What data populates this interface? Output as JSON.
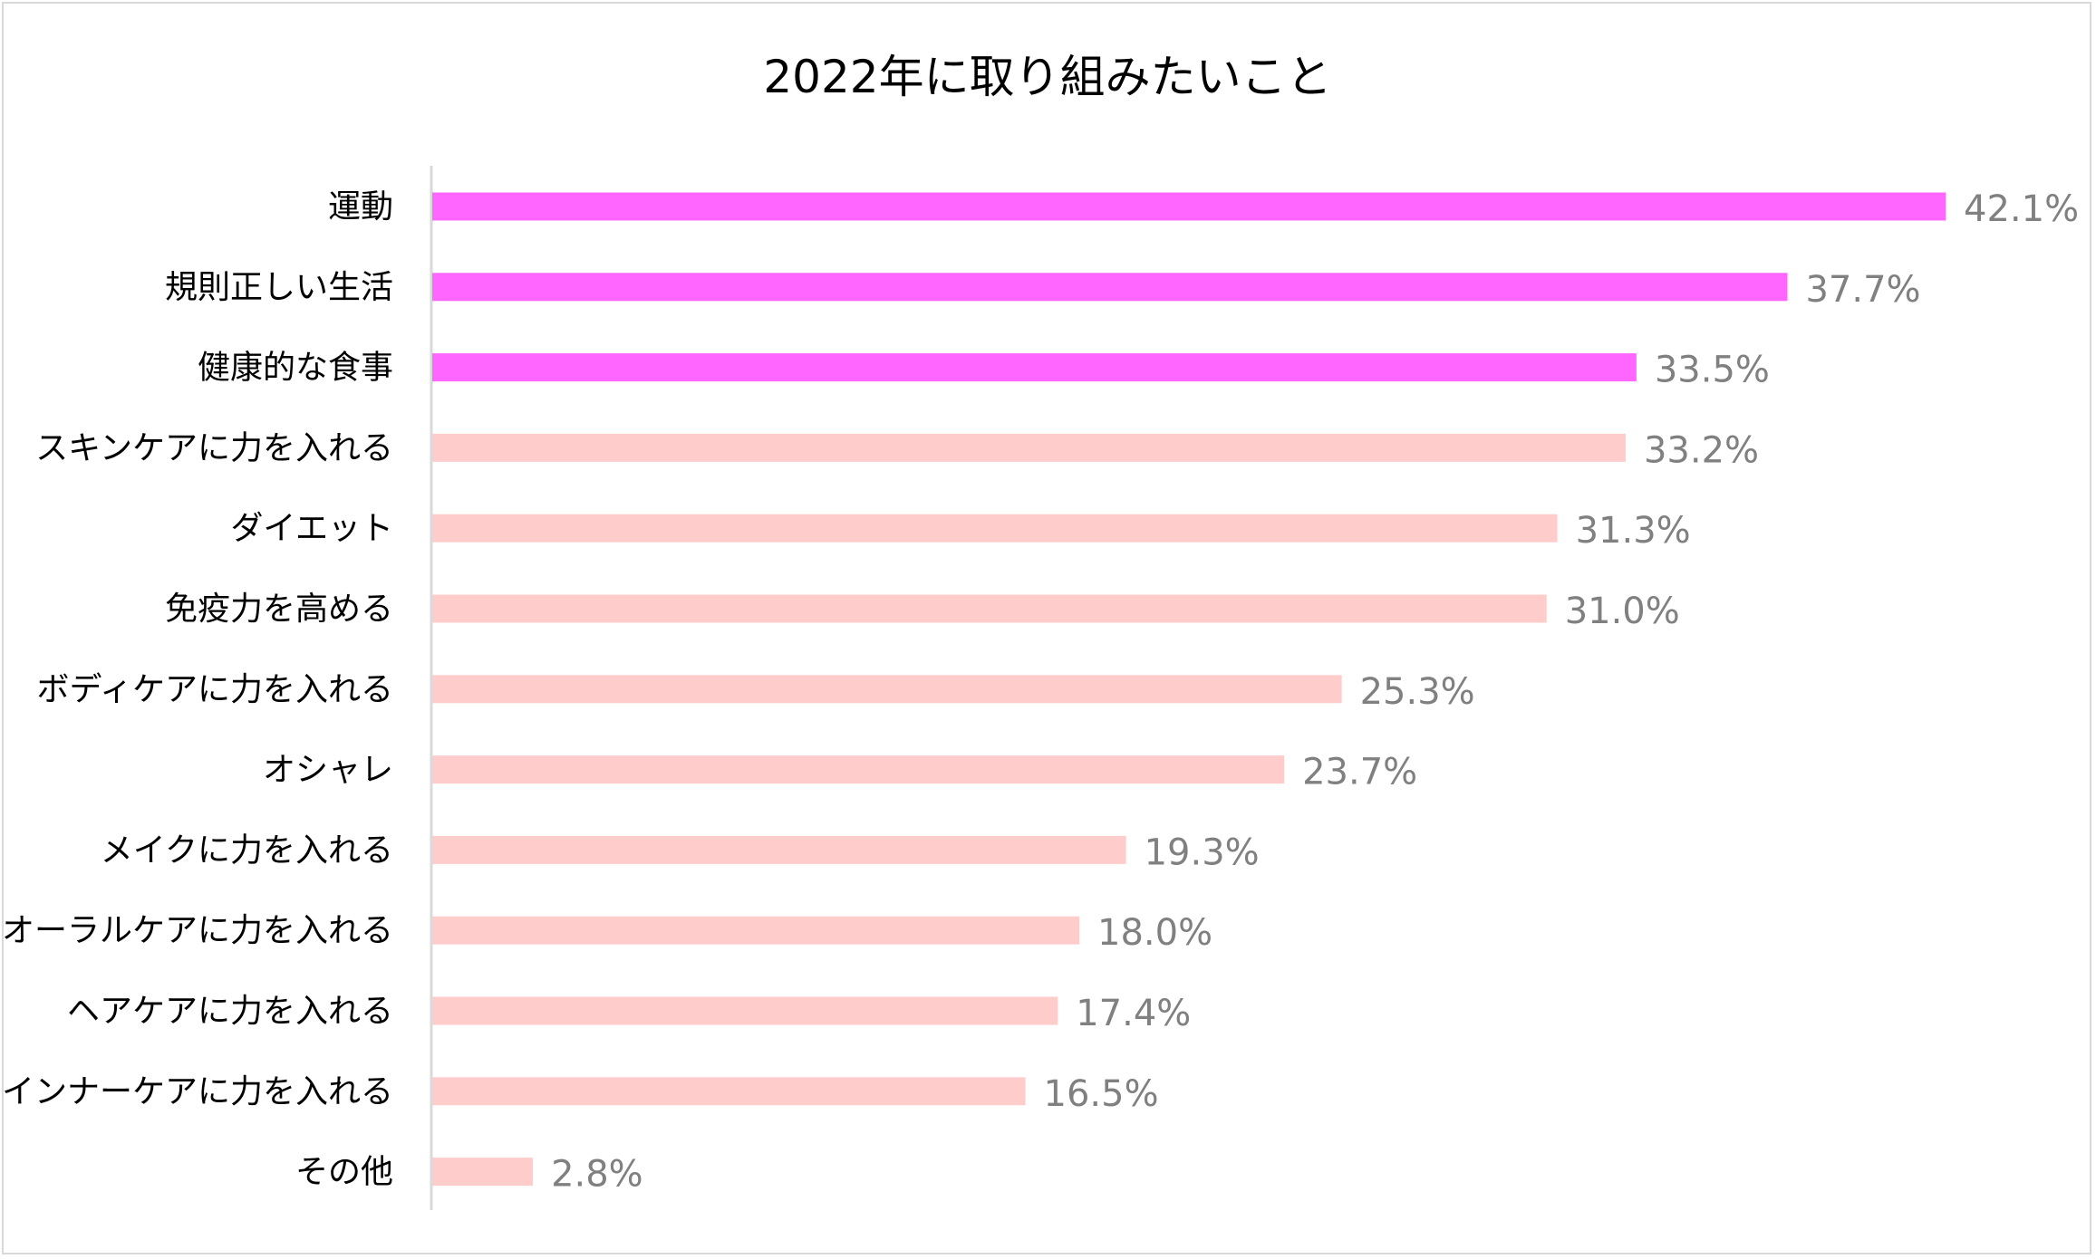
{
  "chart_data": {
    "type": "bar",
    "orientation": "horizontal",
    "title": "2022年に取り組みたいこと",
    "xlabel": "",
    "ylabel": "",
    "xlim": [
      0,
      42.1
    ],
    "grid": false,
    "legend": "none",
    "value_suffix": "%",
    "categories": [
      "運動",
      "規則正しい生活",
      "健康的な食事",
      "スキンケアに力を入れる",
      "ダイエット",
      "免疫力を高める",
      "ボディケアに力を入れる",
      "オシャレ",
      "メイクに力を入れる",
      "オーラルケアに力を入れる",
      "ヘアケアに力を入れる",
      "インナーケアに力を入れる",
      "その他"
    ],
    "values": [
      42.1,
      37.7,
      33.5,
      33.2,
      31.3,
      31.0,
      25.3,
      23.7,
      19.3,
      18.0,
      17.4,
      16.5,
      2.8
    ],
    "value_labels": [
      "42.1%",
      "37.7%",
      "33.5%",
      "33.2%",
      "31.3%",
      "31.0%",
      "25.3%",
      "23.7%",
      "19.3%",
      "18.0%",
      "17.4%",
      "16.5%",
      "2.8%"
    ],
    "highlight_count": 3,
    "colors": {
      "highlight": "#ff66ff",
      "normal": "#ffcccc",
      "axis": "#d9d9d9",
      "value_text": "#808080",
      "label_text": "#000000"
    }
  }
}
